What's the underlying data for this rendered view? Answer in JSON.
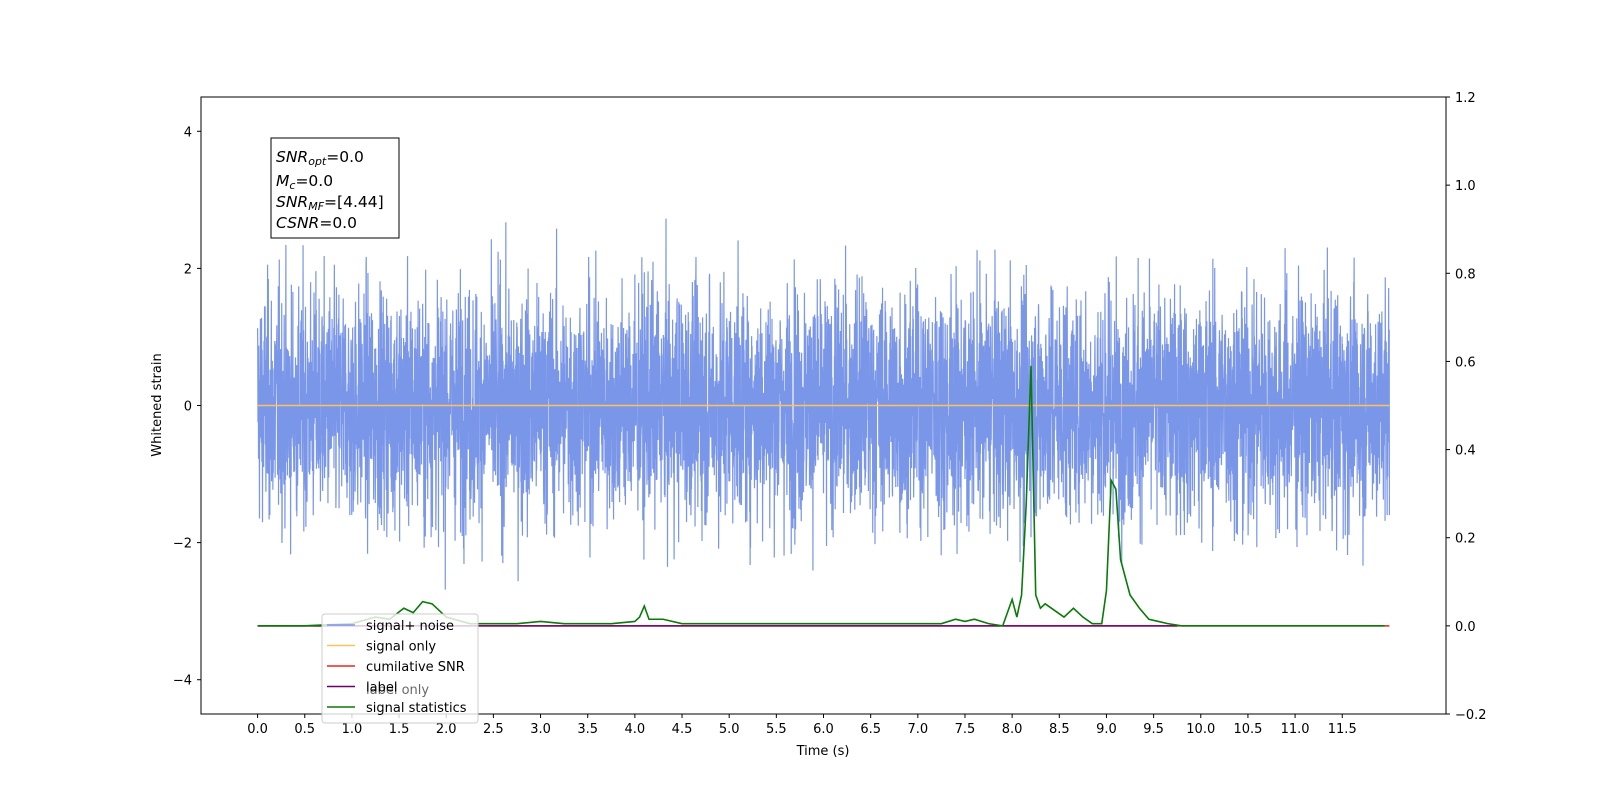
{
  "chart_data": {
    "type": "line",
    "xlabel": "Time (s)",
    "ylabel": "Whitened strain",
    "xlim": [
      -0.6,
      12.6
    ],
    "ylim": [
      -4.5,
      4.5
    ],
    "y2lim": [
      -0.2,
      1.2
    ],
    "xticks": [
      "0.0",
      "0.5",
      "1.0",
      "1.5",
      "2.0",
      "2.5",
      "3.0",
      "3.5",
      "4.0",
      "4.5",
      "5.0",
      "5.5",
      "6.0",
      "6.5",
      "7.0",
      "7.5",
      "8.0",
      "8.5",
      "9.0",
      "9.5",
      "10.0",
      "10.5",
      "11.0",
      "11.5"
    ],
    "yticks": [
      "4",
      "2",
      "0",
      "−2",
      "−4"
    ],
    "y2ticks": [
      "1.2",
      "1.0",
      "0.8",
      "0.6",
      "0.4",
      "0.2",
      "0.0",
      "−0.2"
    ],
    "info": {
      "snr_opt": {
        "base": "SNR",
        "sub": "opt",
        "value": "=0.0"
      },
      "mc": {
        "base": "M",
        "sub": "c",
        "value": "=0.0"
      },
      "snr_mf": {
        "base": "SNR",
        "sub": "MF",
        "value": "=[4.44]"
      },
      "csnr": {
        "base": "CSNR",
        "value": "=0.0"
      }
    },
    "colors": {
      "signal_noise": "#7a96e8",
      "signal_only": "#ffc25a",
      "cumulative": "#e8261a",
      "label": "#6b006b",
      "statistics": "#0a7a0a"
    },
    "series": [
      {
        "name": "signal+ noise",
        "axis": "left",
        "noise_sigma": 0.85,
        "xrange": [
          0,
          12.0
        ]
      },
      {
        "name": "signal only",
        "axis": "left",
        "x": [
          0,
          12.0
        ],
        "y": [
          0,
          0
        ]
      },
      {
        "name": "cumilative SNR",
        "axis": "right",
        "x": [
          0,
          12.0
        ],
        "y": [
          0,
          0
        ]
      },
      {
        "name": "label",
        "axis": "right",
        "x": [
          0,
          9.75
        ],
        "y": [
          0,
          0
        ]
      },
      {
        "name": "label only",
        "axis": "right",
        "x": [],
        "y": []
      },
      {
        "name": "signal statistics",
        "axis": "right",
        "x": [
          0.0,
          0.5,
          1.0,
          1.25,
          1.4,
          1.55,
          1.65,
          1.75,
          1.85,
          2.0,
          2.25,
          2.5,
          2.75,
          3.0,
          3.25,
          3.5,
          3.75,
          4.0,
          4.05,
          4.1,
          4.15,
          4.2,
          4.3,
          4.5,
          5.0,
          5.5,
          6.0,
          6.5,
          7.0,
          7.25,
          7.4,
          7.5,
          7.6,
          7.75,
          7.9,
          8.0,
          8.05,
          8.1,
          8.15,
          8.2,
          8.25,
          8.3,
          8.35,
          8.45,
          8.55,
          8.65,
          8.75,
          8.85,
          8.95,
          9.0,
          9.05,
          9.1,
          9.15,
          9.25,
          9.35,
          9.45,
          9.55,
          9.65,
          9.8,
          10.0,
          11.0,
          11.5,
          11.95
        ],
        "y": [
          0.0,
          0.0,
          0.005,
          0.02,
          0.015,
          0.04,
          0.03,
          0.055,
          0.05,
          0.02,
          0.005,
          0.005,
          0.005,
          0.01,
          0.005,
          0.005,
          0.005,
          0.01,
          0.02,
          0.045,
          0.015,
          0.015,
          0.015,
          0.005,
          0.005,
          0.005,
          0.005,
          0.005,
          0.005,
          0.005,
          0.015,
          0.01,
          0.015,
          0.005,
          0.0,
          0.06,
          0.02,
          0.07,
          0.28,
          0.59,
          0.07,
          0.04,
          0.05,
          0.035,
          0.02,
          0.04,
          0.02,
          0.005,
          0.005,
          0.08,
          0.33,
          0.31,
          0.15,
          0.07,
          0.04,
          0.015,
          0.01,
          0.005,
          0.0,
          0.0,
          0.0,
          0.0,
          0.0
        ]
      }
    ],
    "legend": {
      "placement": "lower-left",
      "entries": [
        {
          "label": "signal+ noise",
          "color": "#7a96e8"
        },
        {
          "label": "signal only",
          "color": "#ffc25a"
        },
        {
          "label": "cumilative SNR",
          "color": "#e8261a"
        },
        {
          "label": "label",
          "color": "#6b006b"
        },
        {
          "label": "signal statistics",
          "color": "#0a7a0a"
        }
      ],
      "ghost_label": "label only"
    }
  }
}
